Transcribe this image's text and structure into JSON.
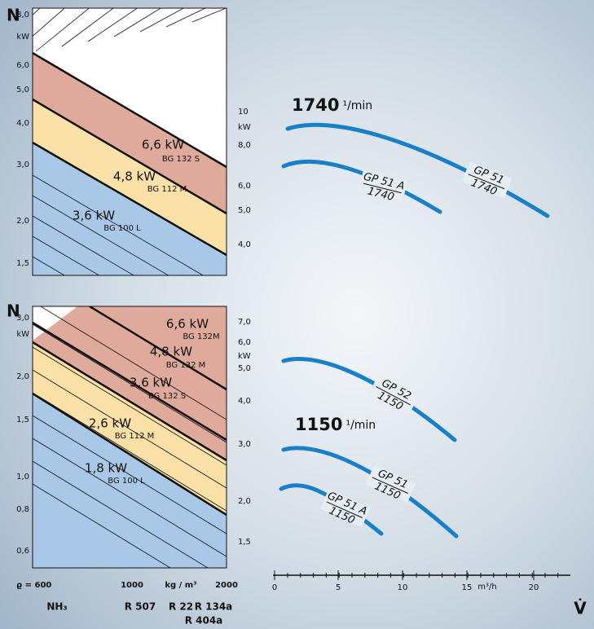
{
  "panels": [
    {
      "axis_label": "N",
      "left_ticks": [
        "8,0",
        "kW",
        "6,0",
        "5,0",
        "4,0",
        "3,0",
        "2,0",
        "1,5"
      ],
      "right_ticks": [
        "10",
        "kW",
        "8,0",
        "6,0",
        "5,0",
        "4,0"
      ],
      "bands": [
        {
          "power": "6,6 kW",
          "motor": "BG 132 S"
        },
        {
          "power": "4,8 kW",
          "motor": "BG 112 M"
        },
        {
          "power": "3,6 kW",
          "motor": "BG 100 L"
        }
      ],
      "speed": "1740",
      "speed_unit": "¹/min",
      "curves": [
        {
          "name": "GP 51",
          "speed": "1740"
        },
        {
          "name": "GP 51 A",
          "speed": "1740"
        }
      ]
    },
    {
      "axis_label": "N",
      "left_ticks": [
        "3,0",
        "kW",
        "2,0",
        "1,5",
        "1,0",
        "0,8",
        "0,6"
      ],
      "right_ticks": [
        "7,0",
        "6,0",
        "kW",
        "5,0",
        "4,0",
        "3,0",
        "2,0",
        "1,5"
      ],
      "bands": [
        {
          "power": "6,6 kW",
          "motor": "BG 132M"
        },
        {
          "power": "4,8 kW",
          "motor": "BG 132 M"
        },
        {
          "power": "3,6 kW",
          "motor": "BG 132 S"
        },
        {
          "power": "2,6 kW",
          "motor": "BG 112 M"
        },
        {
          "power": "1,8 kW",
          "motor": "BG 100 L"
        }
      ],
      "speed": "1150",
      "speed_unit": "¹/min",
      "curves": [
        {
          "name": "GP 52",
          "speed": "1150"
        },
        {
          "name": "GP 51",
          "speed": "1150"
        },
        {
          "name": "GP 51 A",
          "speed": "1150"
        }
      ]
    }
  ],
  "density_axis": {
    "ticks": [
      "ϱ = 600",
      "1000",
      "kg / m³",
      "2000"
    ],
    "refrigerants": [
      "NH₃",
      "R 507",
      "R 22",
      "R 134a",
      "R 404a"
    ]
  },
  "flow_axis": {
    "ticks": [
      "0",
      "5",
      "10",
      "15",
      "20"
    ],
    "unit": "m³/h",
    "label": "V̇"
  }
}
